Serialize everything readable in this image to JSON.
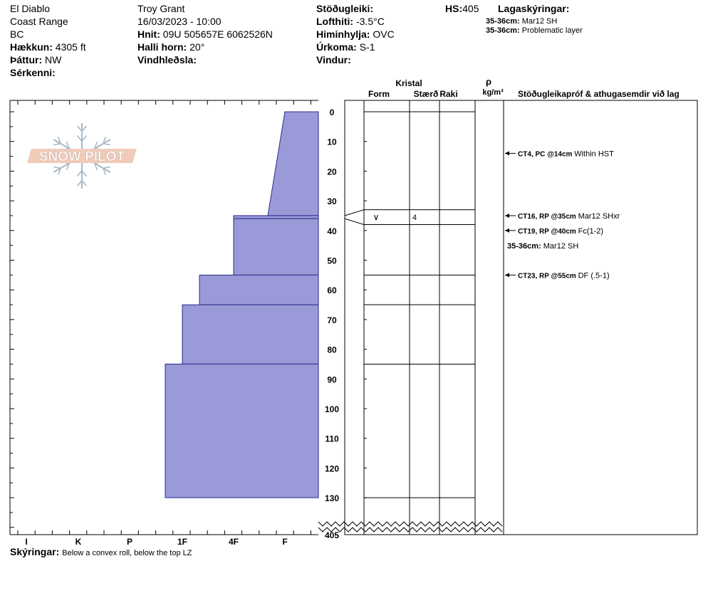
{
  "header": {
    "location": "El Diablo",
    "range": "Coast Range",
    "state": "BC",
    "elevation_label": "Hækkun:",
    "elevation": "4305 ft",
    "aspect_label": "Þáttur:",
    "aspect": "NW",
    "features_label": "Sérkenni:",
    "observer": "Troy Grant",
    "datetime": "16/03/2023 - 10:00",
    "coords_label": "Hnit:",
    "coords": "09U 505657E 6062526N",
    "slope_label": "Halli horn:",
    "slope": "20°",
    "wind_loading_label": "Vindhleðsla:",
    "stability_label": "Stöðugleiki:",
    "air_temp_label": "Lofthiti:",
    "air_temp": "-3.5°C",
    "sky_label": "Himinhylja:",
    "sky": "OVC",
    "precip_label": "Úrkoma:",
    "precip": "S-1",
    "wind_label": "Vindur:",
    "hs_label": "HS:",
    "hs": "405",
    "layers_legend_label": "Lagaskýringar:"
  },
  "layer_notes": [
    {
      "depth": "35-36cm:",
      "text": "Mar12 SH"
    },
    {
      "depth": "35-36cm:",
      "text": "Problematic layer"
    }
  ],
  "columns": {
    "crystal": "Kristal",
    "form": "Form",
    "size": "Stærð",
    "moisture": "Raki",
    "rho": "ρ",
    "density_unit": "kg/m³",
    "tests": "Stöðugleikapróf & athugasemdir við lag"
  },
  "logo_text": "SNOW PILOT",
  "footer": {
    "label": "Skýringar:",
    "text": "Below a convex roll, below the top LZ"
  },
  "chart_data": {
    "type": "snow_profile",
    "hand_hardness_ticks": [
      "I",
      "K",
      "P",
      "1F",
      "4F",
      "F"
    ],
    "depth_ticks": [
      0,
      10,
      20,
      30,
      40,
      50,
      60,
      70,
      80,
      90,
      100,
      110,
      120,
      130
    ],
    "depth_break_label": "405",
    "hardness_layers": [
      {
        "top": 0,
        "bottom": 35,
        "hardness_top": "F",
        "hardness_bottom": "4F+"
      },
      {
        "top": 35,
        "bottom": 36,
        "hardness": "4F"
      },
      {
        "top": 36,
        "bottom": 55,
        "hardness": "4F"
      },
      {
        "top": 55,
        "bottom": 65,
        "hardness": "1F+"
      },
      {
        "top": 65,
        "bottom": 85,
        "hardness": "1F"
      },
      {
        "top": 85,
        "bottom": 130,
        "hardness": "1F-"
      }
    ],
    "layer_boundaries": [
      0,
      33,
      38,
      55,
      65,
      85,
      130
    ],
    "crystal_rows": [
      {
        "depth_top": 33,
        "depth_bottom": 38,
        "form_symbol": "∨",
        "size": "4"
      }
    ],
    "tests": [
      {
        "depth": 14,
        "result": "CT4, PC @14cm",
        "comment": "Within HST"
      },
      {
        "depth": 35,
        "result": "CT16, RP @35cm",
        "comment": "Mar12 SHxr"
      },
      {
        "depth": 40,
        "result": "CT19, RP @40cm",
        "comment": "Fc(1-2)"
      },
      {
        "depth": 55,
        "result": "CT23, RP @55cm",
        "comment": "DF (.5-1)"
      }
    ],
    "layer_comment": {
      "depth": "35-36cm:",
      "text": "Mar12 SH"
    },
    "colors": {
      "fill": "#9a9ad8",
      "stroke": "#2b2b8c"
    }
  }
}
